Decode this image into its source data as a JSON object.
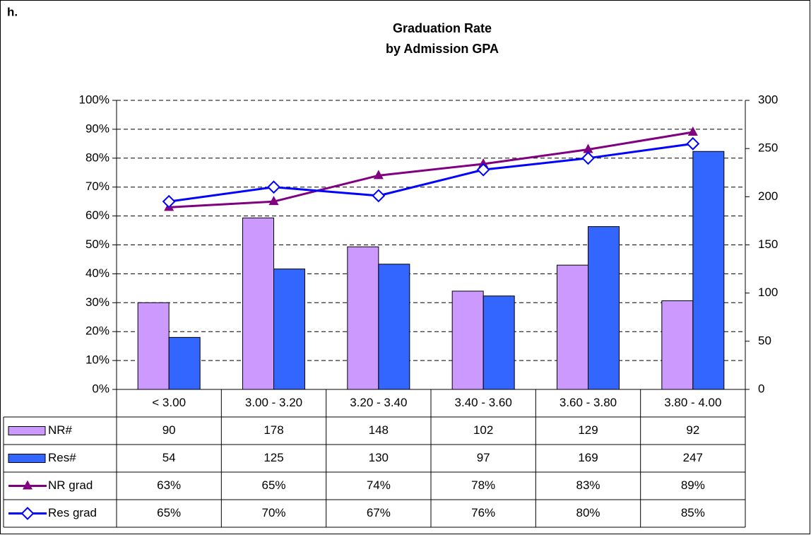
{
  "chart_data": {
    "type": "bar",
    "panel_label": "h.",
    "title": "Graduation Rate",
    "subtitle": "by Admission GPA",
    "categories": [
      "< 3.00",
      "3.00 - 3.20",
      "3.20 - 3.40",
      "3.40 - 3.60",
      "3.60 - 3.80",
      "3.80 - 4.00"
    ],
    "series": [
      {
        "name": "NR#",
        "type": "bar",
        "axis": "y2",
        "color": "#cc99ff",
        "values": [
          90,
          178,
          148,
          102,
          129,
          92
        ]
      },
      {
        "name": "Res#",
        "type": "bar",
        "axis": "y2",
        "color": "#3366ff",
        "values": [
          54,
          125,
          130,
          97,
          169,
          247
        ]
      },
      {
        "name": "NR grad",
        "type": "line",
        "marker": "triangle",
        "color": "#800080",
        "values": [
          63,
          65,
          74,
          78,
          83,
          89
        ],
        "value_labels": [
          "63%",
          "65%",
          "74%",
          "78%",
          "83%",
          "89%"
        ]
      },
      {
        "name": "Res grad",
        "type": "line",
        "marker": "diamond",
        "color": "#0000ff",
        "values": [
          65,
          70,
          67,
          76,
          80,
          85
        ],
        "value_labels": [
          "65%",
          "70%",
          "67%",
          "76%",
          "80%",
          "85%"
        ]
      }
    ],
    "ylim": [
      0,
      100
    ],
    "yticks": [
      {
        "value": 0,
        "label": "0%"
      },
      {
        "value": 10,
        "label": "10%"
      },
      {
        "value": 20,
        "label": "20%"
      },
      {
        "value": 30,
        "label": "30%"
      },
      {
        "value": 40,
        "label": "40%"
      },
      {
        "value": 50,
        "label": "50%"
      },
      {
        "value": 60,
        "label": "60%"
      },
      {
        "value": 70,
        "label": "70%"
      },
      {
        "value": 80,
        "label": "80%"
      },
      {
        "value": 90,
        "label": "90%"
      },
      {
        "value": 100,
        "label": "100%"
      }
    ],
    "y2lim": [
      0,
      300
    ],
    "y2ticks": [
      0,
      50,
      100,
      150,
      200,
      250,
      300
    ],
    "grid": true
  }
}
